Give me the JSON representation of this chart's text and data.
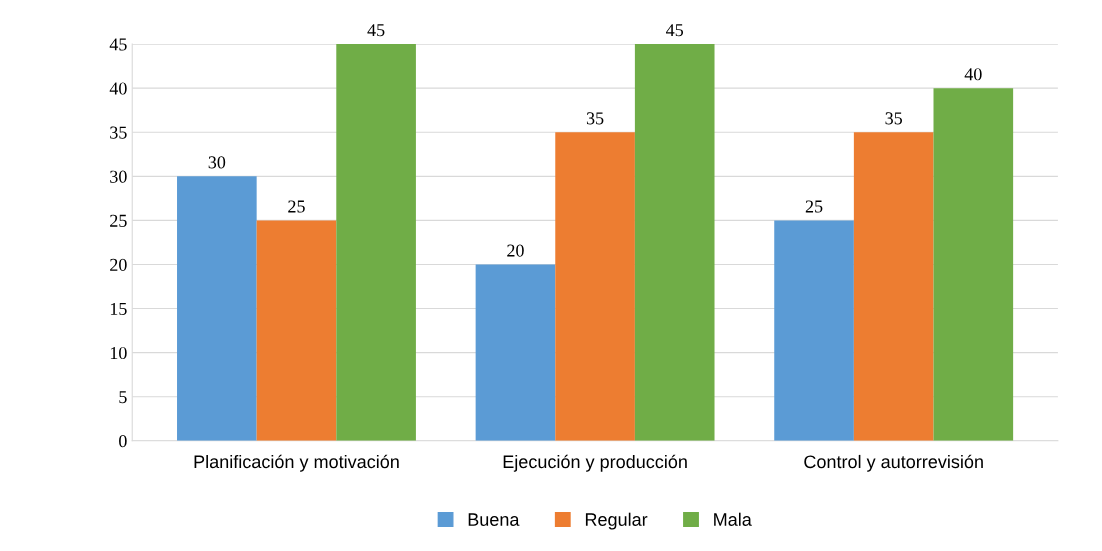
{
  "chart_data": {
    "type": "bar",
    "categories": [
      "Planificación y motivación",
      "Ejecución y producción",
      "Control y autorrevisión"
    ],
    "series": [
      {
        "name": "Buena",
        "color": "#5b9bd5",
        "values": [
          30,
          20,
          25
        ]
      },
      {
        "name": "Regular",
        "color": "#ed7d31",
        "values": [
          25,
          35,
          35
        ]
      },
      {
        "name": "Mala",
        "color": "#70ad47",
        "values": [
          45,
          45,
          40
        ]
      }
    ],
    "ylim": [
      0,
      45
    ],
    "yticks": [
      0,
      5,
      10,
      15,
      20,
      25,
      30,
      35,
      40,
      45
    ],
    "grid": "y",
    "legend": "bottom",
    "data_labels": true
  }
}
